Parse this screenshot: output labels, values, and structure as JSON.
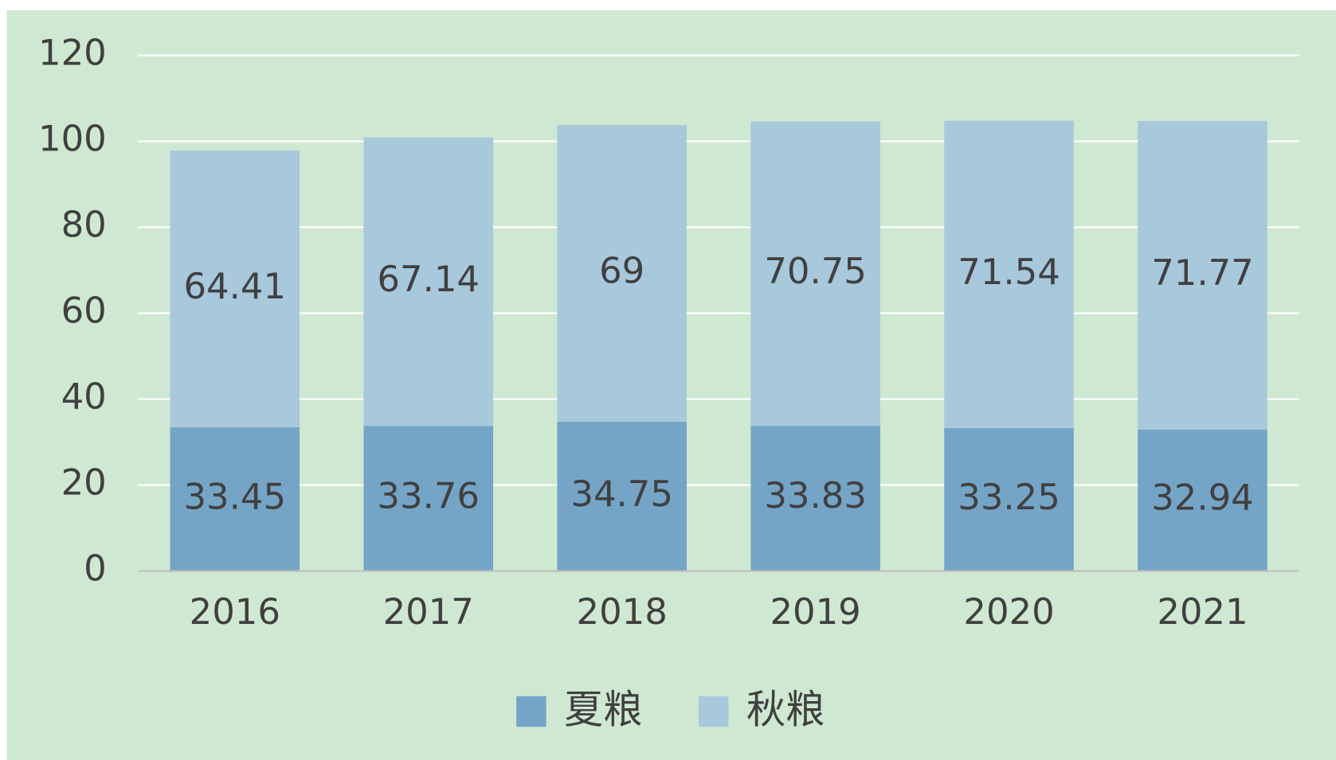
{
  "chart_data": {
    "type": "bar",
    "stacked": true,
    "categories": [
      "2016",
      "2017",
      "2018",
      "2019",
      "2020",
      "2021"
    ],
    "series": [
      {
        "name": "夏粮",
        "color": "#75a5c6",
        "values": [
          33.45,
          33.76,
          34.75,
          33.83,
          33.25,
          32.94
        ]
      },
      {
        "name": "秋粮",
        "color": "#a8c8dc",
        "values": [
          64.41,
          67.14,
          69,
          70.75,
          71.54,
          71.77
        ]
      }
    ],
    "ylim": [
      0,
      120
    ],
    "yticks": [
      0,
      20,
      40,
      60,
      80,
      100,
      120
    ],
    "grid": true,
    "legend": "bottom"
  }
}
